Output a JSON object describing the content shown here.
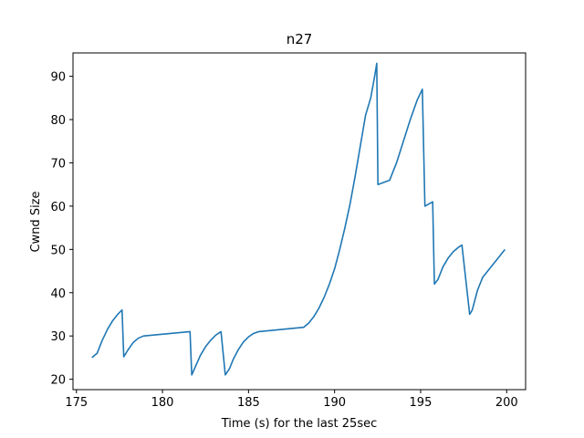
{
  "chart_data": {
    "type": "line",
    "title": "n27",
    "xlabel": "Time (s) for the last 25sec",
    "ylabel": "Cwnd Size",
    "xlim": [
      174.8,
      201.1
    ],
    "ylim": [
      17.6,
      95.4
    ],
    "xticks": [
      175,
      180,
      185,
      190,
      195,
      200
    ],
    "yticks": [
      20,
      30,
      40,
      50,
      60,
      70,
      80,
      90
    ],
    "grid": false,
    "series": [
      {
        "color": "#1f77b4",
        "points": [
          [
            175.9,
            25.0
          ],
          [
            176.2,
            26.0
          ],
          [
            176.5,
            29.0
          ],
          [
            176.8,
            31.5
          ],
          [
            177.1,
            33.5
          ],
          [
            177.4,
            35.0
          ],
          [
            177.65,
            36.0
          ],
          [
            177.75,
            25.2
          ],
          [
            178.0,
            26.8
          ],
          [
            178.3,
            28.5
          ],
          [
            178.6,
            29.5
          ],
          [
            178.9,
            30.0
          ],
          [
            181.6,
            31.0
          ],
          [
            181.7,
            21.0
          ],
          [
            181.9,
            22.8
          ],
          [
            182.2,
            25.5
          ],
          [
            182.5,
            27.5
          ],
          [
            182.8,
            29.0
          ],
          [
            183.1,
            30.2
          ],
          [
            183.4,
            31.0
          ],
          [
            183.65,
            21.0
          ],
          [
            183.9,
            22.5
          ],
          [
            184.1,
            24.5
          ],
          [
            184.4,
            26.8
          ],
          [
            184.7,
            28.6
          ],
          [
            185.0,
            29.8
          ],
          [
            185.3,
            30.6
          ],
          [
            185.6,
            31.0
          ],
          [
            188.2,
            32.0
          ],
          [
            188.5,
            33.0
          ],
          [
            188.8,
            34.5
          ],
          [
            189.1,
            36.5
          ],
          [
            189.4,
            39.0
          ],
          [
            189.7,
            42.0
          ],
          [
            190.0,
            45.5
          ],
          [
            190.3,
            50.0
          ],
          [
            190.6,
            55.0
          ],
          [
            190.9,
            60.5
          ],
          [
            191.2,
            67.0
          ],
          [
            191.5,
            74.0
          ],
          [
            191.8,
            81.0
          ],
          [
            192.1,
            85.0
          ],
          [
            192.35,
            90.5
          ],
          [
            192.45,
            93.0
          ],
          [
            192.52,
            65.0
          ],
          [
            193.2,
            66.0
          ],
          [
            193.6,
            70.0
          ],
          [
            194.0,
            75.0
          ],
          [
            194.4,
            80.0
          ],
          [
            194.8,
            84.5
          ],
          [
            195.1,
            87.0
          ],
          [
            195.25,
            60.0
          ],
          [
            195.7,
            61.0
          ],
          [
            195.8,
            42.0
          ],
          [
            196.0,
            43.0
          ],
          [
            196.3,
            46.0
          ],
          [
            196.6,
            48.0
          ],
          [
            196.9,
            49.5
          ],
          [
            197.2,
            50.5
          ],
          [
            197.4,
            51.0
          ],
          [
            197.85,
            35.0
          ],
          [
            198.0,
            36.0
          ],
          [
            198.3,
            40.5
          ],
          [
            198.6,
            43.5
          ],
          [
            199.0,
            45.5
          ],
          [
            199.4,
            47.5
          ],
          [
            199.9,
            50.0
          ]
        ]
      }
    ]
  }
}
